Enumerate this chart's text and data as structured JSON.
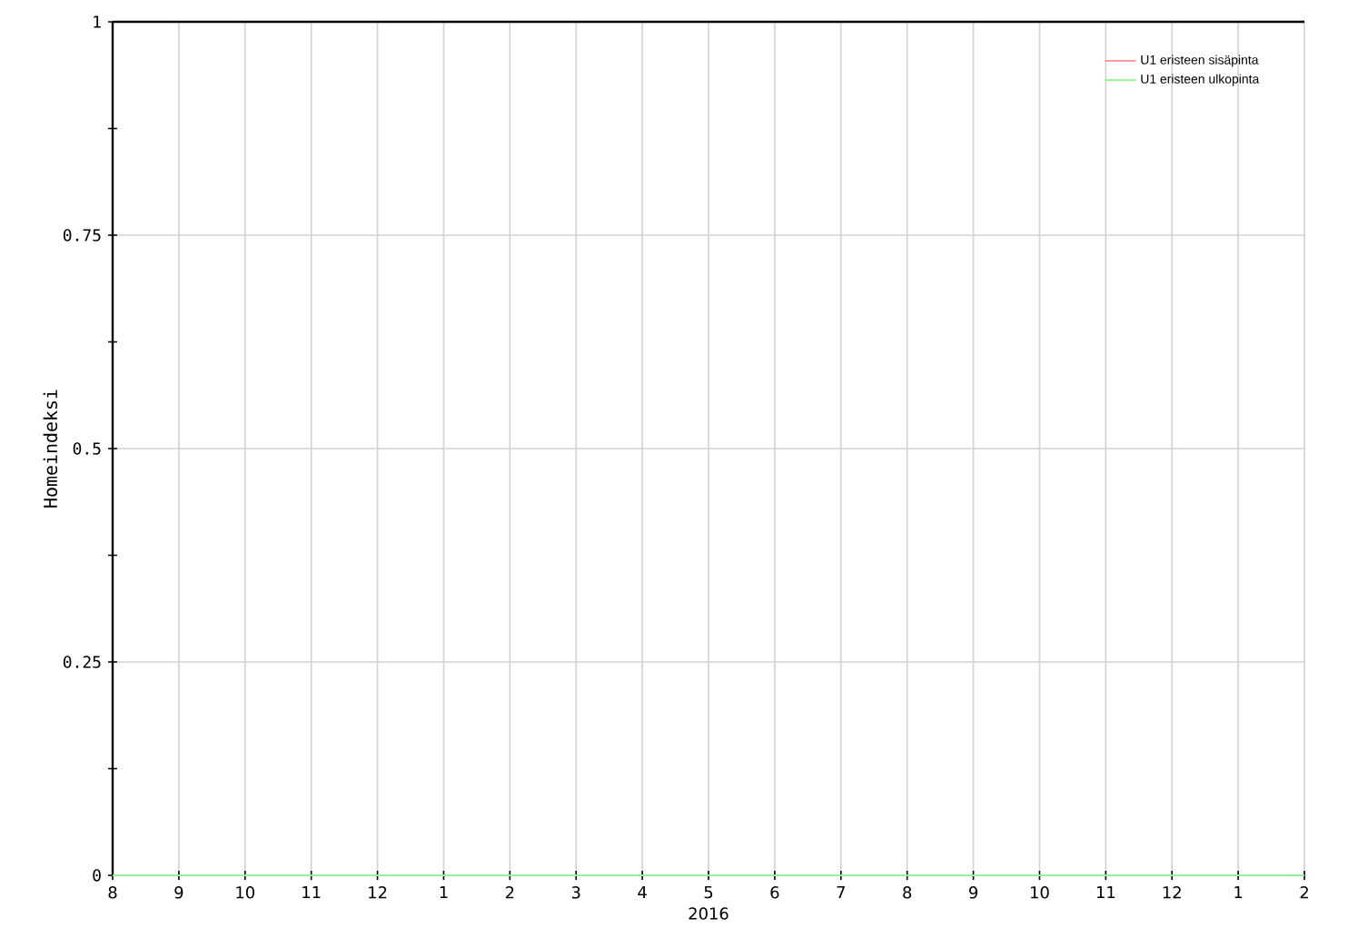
{
  "chart_data": {
    "type": "line",
    "xlabel": "2016",
    "ylabel": "Homeindeksi",
    "x": [
      "2015-08",
      "2015-09",
      "2015-10",
      "2015-11",
      "2015-12",
      "2016-01",
      "2016-02",
      "2016-03",
      "2016-04",
      "2016-05",
      "2016-06",
      "2016-07",
      "2016-08",
      "2016-09",
      "2016-10",
      "2016-11",
      "2016-12",
      "2017-01",
      "2017-02"
    ],
    "series": [
      {
        "name": "U1 eristeen sisäpinta",
        "color": "#ff9999",
        "values": [
          null,
          null,
          null,
          null,
          null,
          null,
          null,
          null,
          null,
          null,
          null,
          null,
          null,
          null,
          null,
          null,
          null,
          null,
          null
        ]
      },
      {
        "name": "U1 eristeen ulkopinta",
        "color": "#99ee99",
        "values": [
          0,
          0,
          0,
          0,
          0,
          0,
          0,
          0,
          0,
          0,
          0,
          0,
          0,
          0,
          0,
          0,
          0,
          0,
          0
        ]
      }
    ],
    "xlim": [
      "2015-08",
      "2017-02"
    ],
    "xticks": [
      {
        "value": "2015-08",
        "label": "8"
      },
      {
        "value": "2015-09",
        "label": "9"
      },
      {
        "value": "2015-10",
        "label": "10"
      },
      {
        "value": "2015-11",
        "label": "11"
      },
      {
        "value": "2015-12",
        "label": "12"
      },
      {
        "value": "2016-01",
        "label": "1"
      },
      {
        "value": "2016-02",
        "label": "2"
      },
      {
        "value": "2016-03",
        "label": "3"
      },
      {
        "value": "2016-04",
        "label": "4"
      },
      {
        "value": "2016-05",
        "label": "5"
      },
      {
        "value": "2016-06",
        "label": "6"
      },
      {
        "value": "2016-07",
        "label": "7"
      },
      {
        "value": "2016-08",
        "label": "8"
      },
      {
        "value": "2016-09",
        "label": "9"
      },
      {
        "value": "2016-10",
        "label": "10"
      },
      {
        "value": "2016-11",
        "label": "11"
      },
      {
        "value": "2016-12",
        "label": "12"
      },
      {
        "value": "2017-01",
        "label": "1"
      },
      {
        "value": "2017-02",
        "label": "2"
      }
    ],
    "ylim": [
      0,
      1
    ],
    "yticks": [
      0,
      {
        "value": 0.125,
        "label": null
      },
      0.25,
      {
        "value": 0.375,
        "label": null
      },
      0.5,
      {
        "value": 0.625,
        "label": null
      },
      0.75,
      {
        "value": 0.875,
        "label": null
      },
      1
    ],
    "grid": true,
    "legend": "top right",
    "marker": "none",
    "line_style": "solid"
  }
}
